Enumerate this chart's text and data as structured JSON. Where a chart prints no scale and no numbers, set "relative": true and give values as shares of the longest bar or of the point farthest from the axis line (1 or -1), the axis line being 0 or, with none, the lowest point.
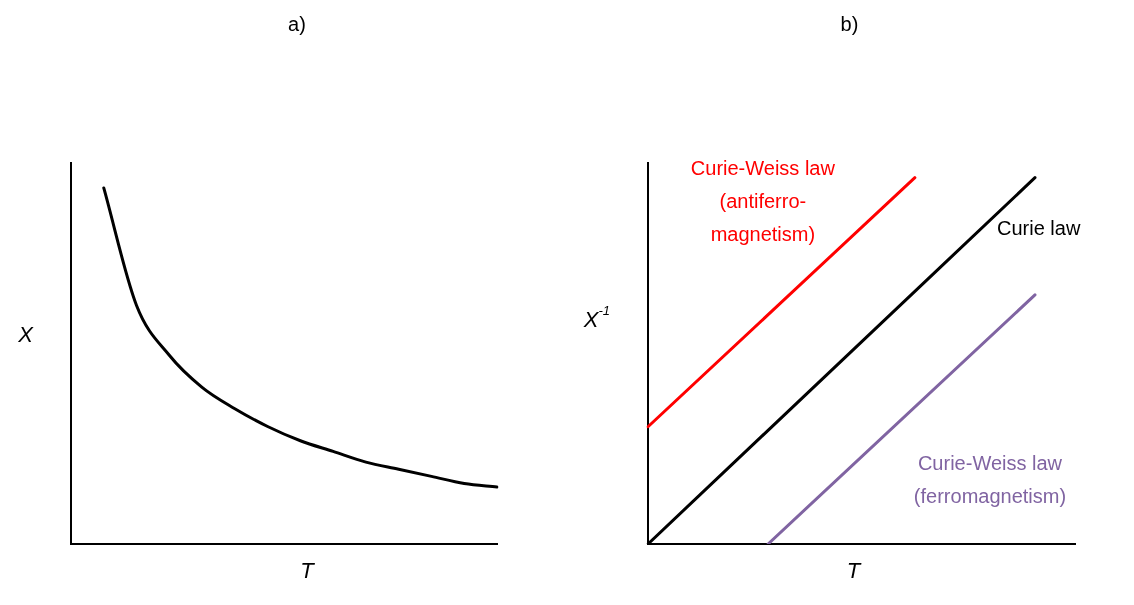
{
  "chart_data": [
    {
      "type": "line",
      "title": "a)",
      "xlabel": "T",
      "ylabel": "X",
      "relative": true,
      "marker": "none",
      "categories": [
        null,
        null,
        null,
        null,
        null,
        null,
        null,
        null,
        null,
        null,
        null,
        null,
        null,
        null
      ],
      "series": [
        {
          "color": "#000000",
          "values": [
            null,
            1,
            0.67,
            0.53,
            0.44,
            0.38,
            0.33,
            0.29,
            0.26,
            0.23,
            0.21,
            0.19,
            0.17,
            0.16
          ]
        }
      ]
    },
    {
      "type": "line",
      "title": "b)",
      "xlabel": "T",
      "ylabel": "X$^{-1}$",
      "relative": true,
      "marker": "none",
      "categories": [
        null,
        null,
        null,
        null,
        null,
        null,
        null,
        null,
        null,
        null,
        null,
        null,
        null,
        null,
        null,
        null,
        null,
        null,
        null,
        null,
        null,
        null,
        null,
        null,
        null,
        null,
        null,
        null,
        null,
        null,
        null,
        null,
        null
      ],
      "series": [
        {
          "name": "Curie-Weiss law\n(antiferro-\nmagnetism)",
          "color": "#ff0000",
          "values": [
            0.32,
            null,
            null,
            null,
            null,
            null,
            null,
            null,
            null,
            null,
            null,
            null,
            null,
            null,
            null,
            null,
            null,
            null,
            null,
            null,
            1,
            null,
            null,
            null,
            null,
            null,
            null,
            null,
            null,
            null,
            null,
            null,
            null
          ]
        },
        {
          "name": "Curie law",
          "color": "#000000",
          "values": [
            0,
            null,
            null,
            null,
            null,
            null,
            null,
            null,
            null,
            null,
            null,
            null,
            null,
            null,
            null,
            null,
            null,
            null,
            null,
            null,
            null,
            null,
            null,
            null,
            null,
            null,
            null,
            null,
            null,
            1,
            null,
            null,
            null
          ]
        },
        {
          "name": "Curie-Weiss law\n(ferromagnetism)",
          "color": "#8064a2",
          "values": [
            null,
            null,
            null,
            null,
            null,
            null,
            null,
            null,
            null,
            0,
            null,
            null,
            null,
            null,
            null,
            null,
            null,
            null,
            null,
            null,
            null,
            null,
            null,
            null,
            null,
            null,
            null,
            null,
            null,
            0.68,
            null,
            null,
            null
          ]
        }
      ]
    }
  ]
}
